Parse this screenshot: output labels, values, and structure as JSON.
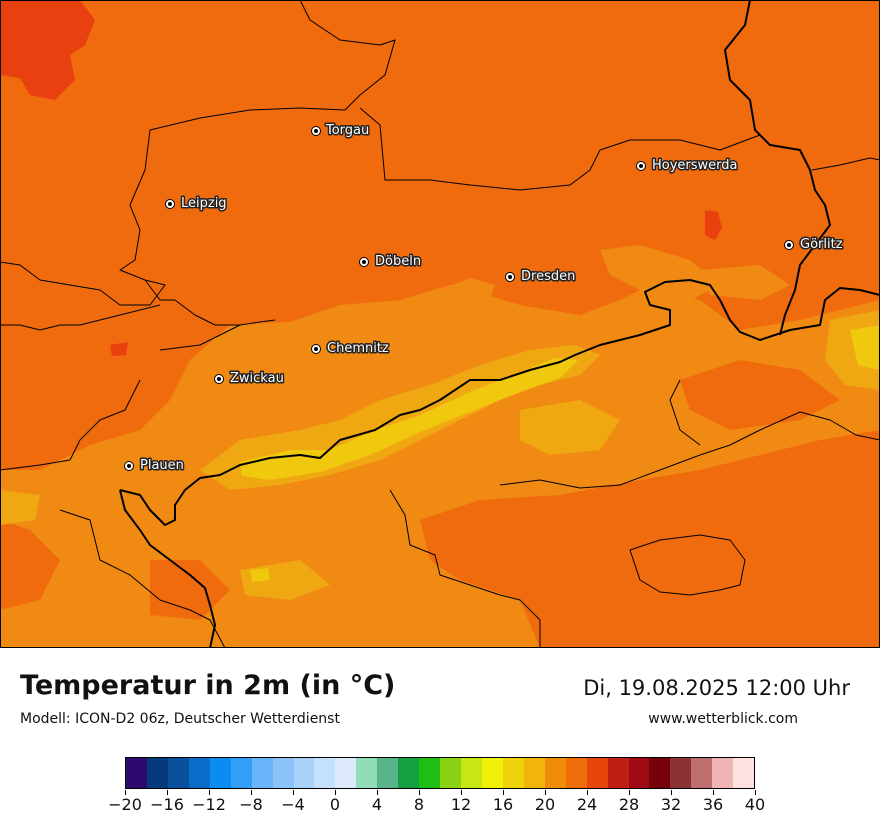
{
  "map": {
    "cities": [
      {
        "name": "Torgau"
      },
      {
        "name": "Hoyerswerda"
      },
      {
        "name": "Leipzig"
      },
      {
        "name": "Görlitz"
      },
      {
        "name": "Döbeln"
      },
      {
        "name": "Dresden"
      },
      {
        "name": "Chemnitz"
      },
      {
        "name": "Zwickau"
      },
      {
        "name": "Plauen"
      }
    ],
    "colors": {
      "base": "#f06a0e",
      "hot": "#e8400f",
      "warm": "#f08a12",
      "mild": "#f0a812",
      "cool": "#f0c80e",
      "border": "#000000"
    }
  },
  "footer": {
    "title": "Temperatur in 2m (in °C)",
    "subtitle": "Modell: ICON-D2 06z, Deutscher Wetterdienst",
    "datetime": "Di, 19.08.2025 12:00 Uhr",
    "website": "www.wetterblick.com"
  },
  "legend": {
    "min": -20,
    "max": 40,
    "tick_labels": [
      "−20",
      "−16",
      "−12",
      "−8",
      "−4",
      "0",
      "4",
      "8",
      "12",
      "16",
      "20",
      "24",
      "28",
      "32",
      "36",
      "40"
    ],
    "colors": [
      "#2d0a6e",
      "#053a7c",
      "#0a4f9c",
      "#0a6cc8",
      "#0a8cf0",
      "#32a0f8",
      "#6ab4fa",
      "#8cc4fa",
      "#a8d2fa",
      "#c4e0fc",
      "#dceafc",
      "#92dcb8",
      "#5ab48a",
      "#14a040",
      "#1ebe14",
      "#8cd214",
      "#c8e614",
      "#f0f00a",
      "#f0d20a",
      "#f0b40a",
      "#f08c0a",
      "#f06e0a",
      "#e6460a",
      "#be1e14",
      "#a00a14",
      "#78000a",
      "#8c3232",
      "#be6e6e",
      "#f0b4b4",
      "#ffe0e0"
    ]
  }
}
